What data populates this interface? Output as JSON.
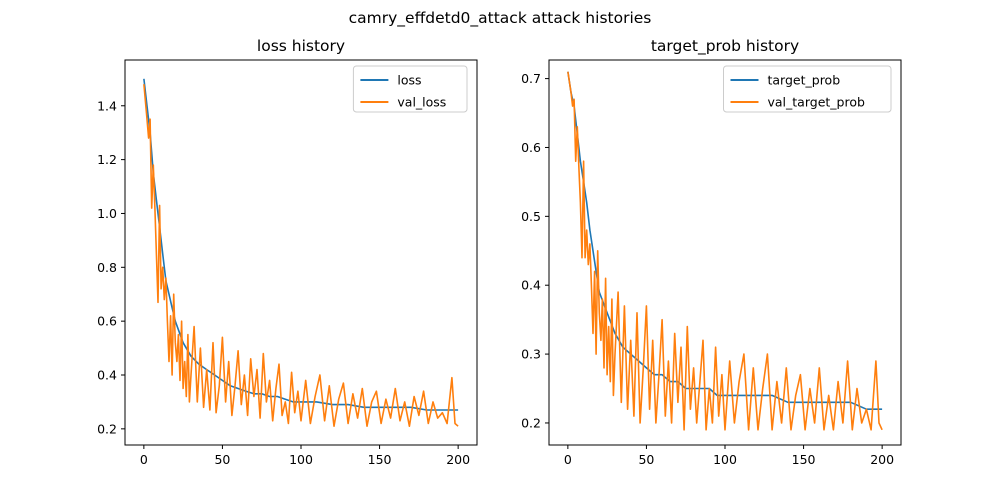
{
  "suptitle": "camry_effdetd0_attack attack histories",
  "colors": {
    "train": "#1f77b4",
    "val": "#ff7f0e"
  },
  "chart_data": [
    {
      "type": "line",
      "title": "loss history",
      "xlabel": "",
      "ylabel": "",
      "xlim": [
        -12,
        212
      ],
      "ylim": [
        0.14,
        1.57
      ],
      "xticks": [
        0,
        50,
        100,
        150,
        200
      ],
      "yticks": [
        0.2,
        0.4,
        0.6,
        0.8,
        1.0,
        1.2,
        1.4
      ],
      "ytick_labels": [
        "0.2",
        "0.4",
        "0.6",
        "0.8",
        "1.0",
        "1.2",
        "1.4"
      ],
      "grid": false,
      "legend": "top-right",
      "series": [
        {
          "name": "loss",
          "x": [
            0,
            2,
            4,
            6,
            8,
            10,
            12,
            14,
            16,
            18,
            20,
            25,
            30,
            35,
            40,
            45,
            50,
            55,
            60,
            65,
            70,
            75,
            80,
            85,
            90,
            95,
            100,
            110,
            120,
            130,
            140,
            150,
            160,
            170,
            180,
            190,
            200
          ],
          "y": [
            1.5,
            1.4,
            1.3,
            1.15,
            1.05,
            0.95,
            0.85,
            0.75,
            0.7,
            0.65,
            0.6,
            0.52,
            0.47,
            0.44,
            0.42,
            0.4,
            0.38,
            0.36,
            0.35,
            0.34,
            0.33,
            0.33,
            0.32,
            0.32,
            0.31,
            0.3,
            0.3,
            0.3,
            0.29,
            0.29,
            0.28,
            0.28,
            0.28,
            0.28,
            0.27,
            0.27,
            0.27
          ]
        },
        {
          "name": "val_loss",
          "x": [
            0,
            2,
            3,
            4,
            5,
            6,
            7,
            8,
            9,
            10,
            11,
            12,
            13,
            14,
            15,
            16,
            17,
            18,
            19,
            20,
            21,
            22,
            23,
            24,
            25,
            26,
            27,
            28,
            29,
            30,
            32,
            34,
            36,
            38,
            40,
            42,
            44,
            46,
            48,
            50,
            52,
            54,
            56,
            58,
            60,
            62,
            64,
            66,
            68,
            70,
            72,
            74,
            76,
            78,
            80,
            82,
            84,
            86,
            88,
            90,
            92,
            94,
            96,
            98,
            100,
            103,
            106,
            109,
            112,
            115,
            118,
            121,
            124,
            127,
            130,
            133,
            136,
            139,
            142,
            145,
            148,
            151,
            154,
            157,
            160,
            163,
            166,
            169,
            172,
            175,
            178,
            181,
            184,
            187,
            190,
            193,
            196,
            198,
            200
          ],
          "y": [
            1.48,
            1.35,
            1.28,
            1.35,
            1.02,
            1.18,
            1.02,
            0.85,
            0.67,
            1.03,
            0.72,
            0.8,
            0.68,
            0.76,
            0.6,
            0.45,
            0.62,
            0.4,
            0.7,
            0.52,
            0.45,
            0.55,
            0.38,
            0.6,
            0.35,
            0.45,
            0.32,
            0.55,
            0.3,
            0.4,
            0.58,
            0.3,
            0.5,
            0.28,
            0.42,
            0.27,
            0.52,
            0.26,
            0.36,
            0.54,
            0.3,
            0.45,
            0.25,
            0.36,
            0.49,
            0.29,
            0.4,
            0.25,
            0.46,
            0.32,
            0.42,
            0.24,
            0.48,
            0.3,
            0.38,
            0.23,
            0.35,
            0.44,
            0.25,
            0.3,
            0.22,
            0.41,
            0.26,
            0.34,
            0.23,
            0.38,
            0.22,
            0.32,
            0.4,
            0.23,
            0.36,
            0.21,
            0.31,
            0.37,
            0.22,
            0.33,
            0.24,
            0.35,
            0.21,
            0.3,
            0.34,
            0.22,
            0.31,
            0.24,
            0.35,
            0.23,
            0.3,
            0.21,
            0.32,
            0.25,
            0.34,
            0.22,
            0.3,
            0.24,
            0.26,
            0.22,
            0.39,
            0.22,
            0.21
          ]
        }
      ]
    },
    {
      "type": "line",
      "title": "target_prob history",
      "xlabel": "",
      "ylabel": "",
      "xlim": [
        -12,
        212
      ],
      "ylim": [
        0.168,
        0.727
      ],
      "xticks": [
        0,
        50,
        100,
        150,
        200
      ],
      "yticks": [
        0.2,
        0.3,
        0.4,
        0.5,
        0.6,
        0.7
      ],
      "ytick_labels": [
        "0.2",
        "0.3",
        "0.4",
        "0.5",
        "0.6",
        "0.7"
      ],
      "grid": false,
      "legend": "top-right",
      "series": [
        {
          "name": "target_prob",
          "x": [
            0,
            2,
            4,
            6,
            8,
            10,
            12,
            14,
            16,
            18,
            20,
            25,
            30,
            35,
            40,
            45,
            50,
            55,
            60,
            65,
            70,
            75,
            80,
            85,
            90,
            95,
            100,
            110,
            120,
            130,
            140,
            150,
            160,
            170,
            180,
            190,
            200
          ],
          "y": [
            0.71,
            0.68,
            0.66,
            0.62,
            0.58,
            0.55,
            0.52,
            0.48,
            0.45,
            0.42,
            0.39,
            0.36,
            0.33,
            0.31,
            0.3,
            0.29,
            0.28,
            0.27,
            0.27,
            0.26,
            0.26,
            0.25,
            0.25,
            0.25,
            0.25,
            0.24,
            0.24,
            0.24,
            0.24,
            0.24,
            0.23,
            0.23,
            0.23,
            0.23,
            0.23,
            0.22,
            0.22
          ]
        },
        {
          "name": "val_target_prob",
          "x": [
            0,
            2,
            3,
            4,
            5,
            6,
            7,
            8,
            9,
            10,
            11,
            12,
            13,
            14,
            15,
            16,
            17,
            18,
            19,
            20,
            21,
            22,
            23,
            24,
            25,
            26,
            27,
            28,
            29,
            30,
            32,
            34,
            36,
            38,
            40,
            42,
            44,
            46,
            48,
            50,
            52,
            54,
            56,
            58,
            60,
            62,
            64,
            66,
            68,
            70,
            72,
            74,
            76,
            78,
            80,
            82,
            84,
            86,
            88,
            90,
            92,
            94,
            96,
            98,
            100,
            103,
            106,
            109,
            112,
            115,
            118,
            121,
            124,
            127,
            130,
            133,
            136,
            139,
            142,
            145,
            148,
            151,
            154,
            157,
            160,
            163,
            166,
            169,
            172,
            175,
            178,
            181,
            184,
            187,
            190,
            193,
            196,
            198,
            200
          ],
          "y": [
            0.71,
            0.68,
            0.66,
            0.67,
            0.58,
            0.63,
            0.57,
            0.52,
            0.44,
            0.58,
            0.44,
            0.48,
            0.43,
            0.46,
            0.4,
            0.33,
            0.42,
            0.3,
            0.45,
            0.36,
            0.32,
            0.38,
            0.28,
            0.41,
            0.27,
            0.34,
            0.26,
            0.38,
            0.24,
            0.3,
            0.39,
            0.23,
            0.37,
            0.22,
            0.32,
            0.21,
            0.36,
            0.2,
            0.28,
            0.37,
            0.22,
            0.32,
            0.2,
            0.27,
            0.35,
            0.21,
            0.29,
            0.2,
            0.33,
            0.23,
            0.31,
            0.19,
            0.34,
            0.22,
            0.28,
            0.2,
            0.26,
            0.32,
            0.19,
            0.25,
            0.2,
            0.31,
            0.21,
            0.27,
            0.19,
            0.29,
            0.2,
            0.26,
            0.3,
            0.19,
            0.28,
            0.19,
            0.25,
            0.3,
            0.19,
            0.26,
            0.2,
            0.28,
            0.19,
            0.24,
            0.27,
            0.19,
            0.25,
            0.2,
            0.28,
            0.19,
            0.24,
            0.19,
            0.26,
            0.2,
            0.29,
            0.19,
            0.25,
            0.2,
            0.22,
            0.19,
            0.29,
            0.2,
            0.19
          ]
        }
      ]
    }
  ]
}
